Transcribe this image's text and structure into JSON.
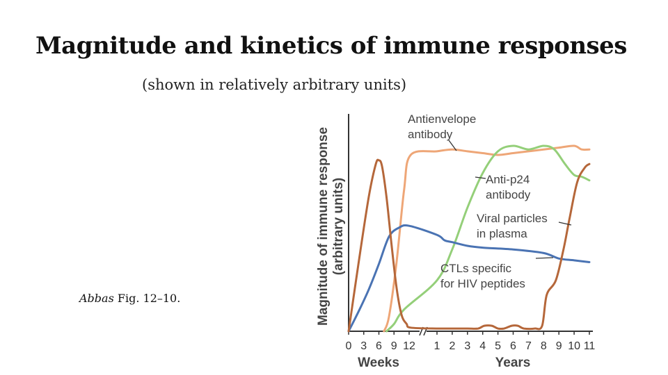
{
  "slide": {
    "title": "Magnitude and kinetics of immune responses",
    "subtitle": "(shown in relatively arbitrary units)",
    "citation_author": "Abbas",
    "citation_rest": " Fig. 12–10."
  },
  "chart_data": {
    "type": "line",
    "ylabel_line1": "Magnitude of immune response",
    "ylabel_line2": "(arbitrary units)",
    "ylim": [
      0,
      100
    ],
    "weeks": {
      "label": "Weeks",
      "ticks": [
        "0",
        "3",
        "6",
        "9",
        "12"
      ],
      "range": [
        0,
        12
      ]
    },
    "years": {
      "label": "Years",
      "ticks": [
        "1",
        "2",
        "3",
        "4",
        "5",
        "6",
        "7",
        "8",
        "9",
        "10",
        "11"
      ],
      "range": [
        1,
        11
      ]
    },
    "axis_break": "//",
    "colors": {
      "viral": "#b5673a",
      "antienvelope": "#eea677",
      "anti_p24": "#94cf79",
      "ctl": "#4a73b3",
      "axis": "#333333"
    },
    "series": [
      {
        "key": "viral",
        "points": [
          {
            "period": "weeks",
            "t": 0,
            "y": 0
          },
          {
            "period": "weeks",
            "t": 2,
            "y": 38
          },
          {
            "period": "weeks",
            "t": 4,
            "y": 74
          },
          {
            "period": "weeks",
            "t": 5.4,
            "y": 92
          },
          {
            "period": "weeks",
            "t": 6,
            "y": 94
          },
          {
            "period": "weeks",
            "t": 6.6,
            "y": 91
          },
          {
            "period": "weeks",
            "t": 7.5,
            "y": 74
          },
          {
            "period": "weeks",
            "t": 8.5,
            "y": 48
          },
          {
            "period": "weeks",
            "t": 9.5,
            "y": 24
          },
          {
            "period": "weeks",
            "t": 10.5,
            "y": 9
          },
          {
            "period": "weeks",
            "t": 11.5,
            "y": 4
          },
          {
            "period": "weeks",
            "t": 12.3,
            "y": 2
          },
          {
            "period": "years",
            "t": 1,
            "y": 1.5
          },
          {
            "period": "years",
            "t": 2,
            "y": 1.5
          },
          {
            "period": "years",
            "t": 3,
            "y": 1.5
          },
          {
            "period": "years",
            "t": 3.7,
            "y": 1.5
          },
          {
            "period": "years",
            "t": 4.1,
            "y": 3
          },
          {
            "period": "years",
            "t": 4.6,
            "y": 3
          },
          {
            "period": "years",
            "t": 5.0,
            "y": 1.5
          },
          {
            "period": "years",
            "t": 5.4,
            "y": 1.5
          },
          {
            "period": "years",
            "t": 5.9,
            "y": 3
          },
          {
            "period": "years",
            "t": 6.3,
            "y": 3
          },
          {
            "period": "years",
            "t": 6.7,
            "y": 1.5
          },
          {
            "period": "years",
            "t": 7.4,
            "y": 1.5
          },
          {
            "period": "years",
            "t": 7.9,
            "y": 3
          },
          {
            "period": "years",
            "t": 8.2,
            "y": 20
          },
          {
            "period": "years",
            "t": 8.8,
            "y": 28
          },
          {
            "period": "years",
            "t": 9.3,
            "y": 45
          },
          {
            "period": "years",
            "t": 9.7,
            "y": 62
          },
          {
            "period": "years",
            "t": 10.2,
            "y": 82
          },
          {
            "period": "years",
            "t": 10.7,
            "y": 90
          },
          {
            "period": "years",
            "t": 11,
            "y": 92
          }
        ]
      },
      {
        "key": "antienvelope",
        "points": [
          {
            "period": "weeks",
            "t": 7,
            "y": 0
          },
          {
            "period": "weeks",
            "t": 8,
            "y": 8
          },
          {
            "period": "weeks",
            "t": 9.5,
            "y": 38
          },
          {
            "period": "weeks",
            "t": 11,
            "y": 78
          },
          {
            "period": "weeks",
            "t": 12.3,
            "y": 97
          },
          {
            "period": "years",
            "t": 1,
            "y": 99
          },
          {
            "period": "years",
            "t": 2,
            "y": 100
          },
          {
            "period": "years",
            "t": 3,
            "y": 99
          },
          {
            "period": "years",
            "t": 4,
            "y": 98
          },
          {
            "period": "years",
            "t": 5,
            "y": 97
          },
          {
            "period": "years",
            "t": 6,
            "y": 98
          },
          {
            "period": "years",
            "t": 7,
            "y": 99
          },
          {
            "period": "years",
            "t": 8,
            "y": 100
          },
          {
            "period": "years",
            "t": 9,
            "y": 101
          },
          {
            "period": "years",
            "t": 10,
            "y": 102
          },
          {
            "period": "years",
            "t": 10.5,
            "y": 100
          },
          {
            "period": "years",
            "t": 11,
            "y": 100
          }
        ]
      },
      {
        "key": "anti_p24",
        "points": [
          {
            "period": "weeks",
            "t": 7.5,
            "y": 0
          },
          {
            "period": "weeks",
            "t": 9,
            "y": 4
          },
          {
            "period": "weeks",
            "t": 11,
            "y": 12
          },
          {
            "period": "years",
            "t": 1,
            "y": 28
          },
          {
            "period": "years",
            "t": 2,
            "y": 45
          },
          {
            "period": "years",
            "t": 3,
            "y": 68
          },
          {
            "period": "years",
            "t": 4,
            "y": 87
          },
          {
            "period": "years",
            "t": 5,
            "y": 99
          },
          {
            "period": "years",
            "t": 6,
            "y": 102
          },
          {
            "period": "years",
            "t": 7,
            "y": 100
          },
          {
            "period": "years",
            "t": 8,
            "y": 102
          },
          {
            "period": "years",
            "t": 8.7,
            "y": 100
          },
          {
            "period": "years",
            "t": 9.4,
            "y": 92
          },
          {
            "period": "years",
            "t": 10,
            "y": 86
          },
          {
            "period": "years",
            "t": 10.5,
            "y": 85
          },
          {
            "period": "years",
            "t": 11,
            "y": 83
          }
        ]
      },
      {
        "key": "ctl",
        "points": [
          {
            "period": "weeks",
            "t": 0,
            "y": 0
          },
          {
            "period": "weeks",
            "t": 2,
            "y": 11
          },
          {
            "period": "weeks",
            "t": 4,
            "y": 23
          },
          {
            "period": "weeks",
            "t": 6,
            "y": 37
          },
          {
            "period": "weeks",
            "t": 8,
            "y": 52
          },
          {
            "period": "weeks",
            "t": 10,
            "y": 57
          },
          {
            "period": "weeks",
            "t": 12,
            "y": 58
          },
          {
            "period": "years",
            "t": 1,
            "y": 53
          },
          {
            "period": "years",
            "t": 1.5,
            "y": 50
          },
          {
            "period": "years",
            "t": 2,
            "y": 49
          },
          {
            "period": "years",
            "t": 3,
            "y": 47
          },
          {
            "period": "years",
            "t": 4,
            "y": 46
          },
          {
            "period": "years",
            "t": 6,
            "y": 45
          },
          {
            "period": "years",
            "t": 8,
            "y": 43
          },
          {
            "period": "years",
            "t": 9,
            "y": 40
          },
          {
            "period": "years",
            "t": 10,
            "y": 39
          },
          {
            "period": "years",
            "t": 11,
            "y": 38
          }
        ]
      }
    ],
    "annotations": [
      {
        "key": "antienvelope",
        "lines": [
          "Antienvelope",
          "antibody"
        ]
      },
      {
        "key": "anti_p24",
        "lines": [
          "Anti-p24",
          "antibody"
        ]
      },
      {
        "key": "viral",
        "lines": [
          "Viral particles",
          "in plasma"
        ]
      },
      {
        "key": "ctl",
        "lines": [
          "CTLs specific",
          "for HIV peptides"
        ]
      }
    ]
  }
}
